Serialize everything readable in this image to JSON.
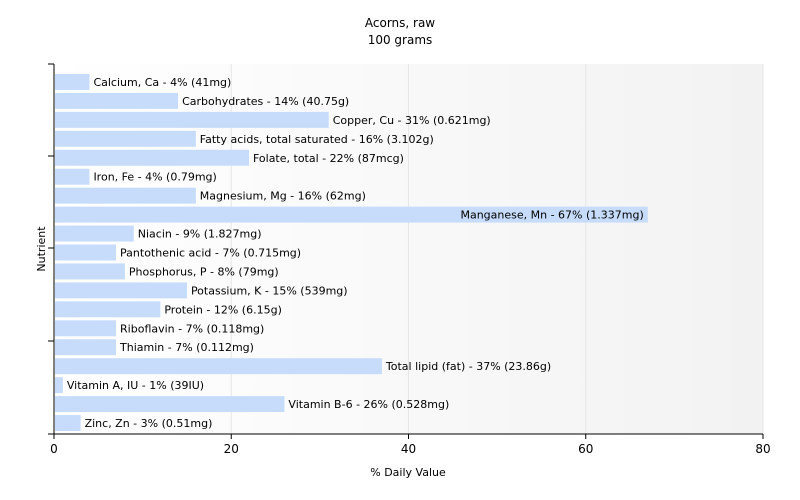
{
  "chart_data": {
    "type": "bar",
    "orientation": "horizontal",
    "title": "Acorns, raw",
    "subtitle": "100 grams",
    "xlabel": "% Daily Value",
    "ylabel": "Nutrient",
    "xlim": [
      0,
      80
    ],
    "xticks": [
      "0",
      "20",
      "40",
      "60",
      "80"
    ],
    "grid": true,
    "categories": [
      "Calcium, Ca",
      "Carbohydrates",
      "Copper, Cu",
      "Fatty acids, total saturated",
      "Folate, total",
      "Iron, Fe",
      "Magnesium, Mg",
      "Manganese, Mn",
      "Niacin",
      "Pantothenic acid",
      "Phosphorus, P",
      "Potassium, K",
      "Protein",
      "Riboflavin",
      "Thiamin",
      "Total lipid (fat)",
      "Vitamin A, IU",
      "Vitamin B-6",
      "Zinc, Zn"
    ],
    "values": [
      4,
      14,
      31,
      16,
      22,
      4,
      16,
      67,
      9,
      7,
      8,
      15,
      12,
      7,
      7,
      37,
      1,
      26,
      3
    ],
    "labels": [
      "Calcium, Ca - 4% (41mg)",
      "Carbohydrates - 14% (40.75g)",
      "Copper, Cu - 31% (0.621mg)",
      "Fatty acids, total saturated - 16% (3.102g)",
      "Folate, total - 22% (87mcg)",
      "Iron, Fe - 4% (0.79mg)",
      "Magnesium, Mg - 16% (62mg)",
      "Manganese, Mn - 67% (1.337mg)",
      "Niacin - 9% (1.827mg)",
      "Pantothenic acid - 7% (0.715mg)",
      "Phosphorus, P - 8% (79mg)",
      "Potassium, K - 15% (539mg)",
      "Protein - 12% (6.15g)",
      "Riboflavin - 7% (0.118mg)",
      "Thiamin - 7% (0.112mg)",
      "Total lipid (fat) - 37% (23.86g)",
      "Vitamin A, IU - 1% (39IU)",
      "Vitamin B-6 - 26% (0.528mg)",
      "Zinc, Zn - 3% (0.51mg)"
    ],
    "bar_color": "#c6dcfa",
    "grid_color": "#e6e6e6"
  }
}
